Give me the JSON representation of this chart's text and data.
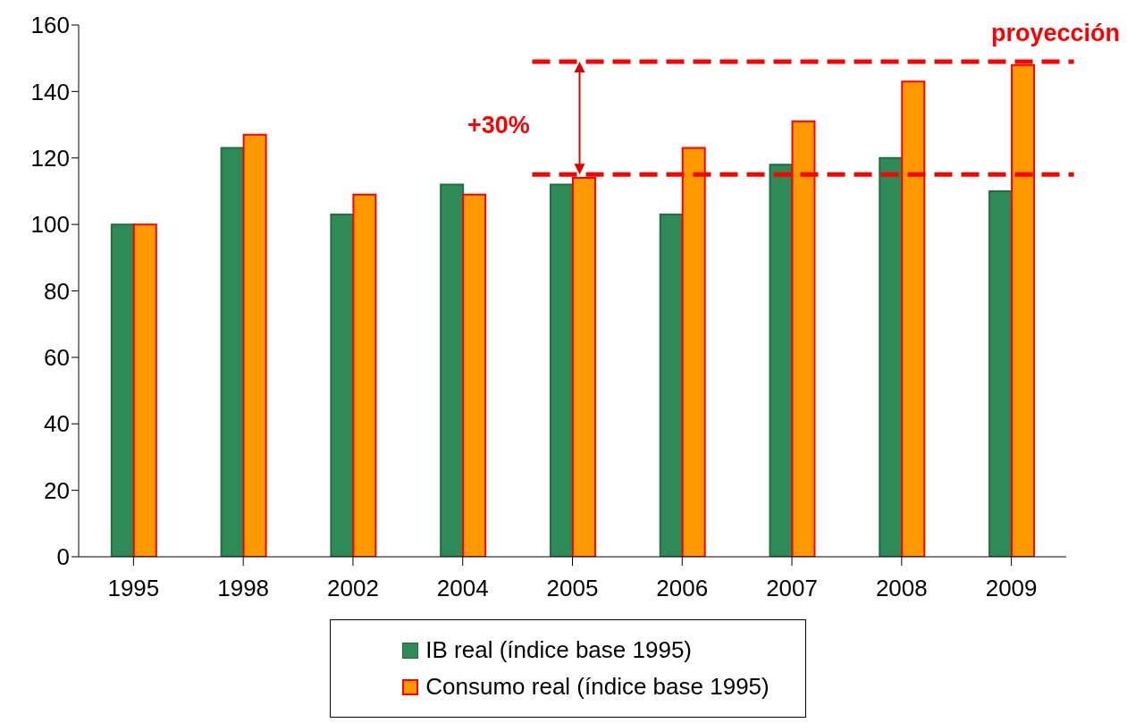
{
  "chart_data": {
    "type": "bar",
    "categories": [
      "1995",
      "1998",
      "2002",
      "2004",
      "2005",
      "2006",
      "2007",
      "2008",
      "2009"
    ],
    "series": [
      {
        "name": "IB real (índice base 1995)",
        "color": "#2e8b57",
        "values": [
          100,
          123,
          103,
          112,
          112,
          103,
          118,
          120,
          110
        ]
      },
      {
        "name": "Consumo real (índice base 1995)",
        "color": "#ff9900",
        "values": [
          100,
          127,
          109,
          109,
          114,
          123,
          131,
          143,
          148
        ]
      }
    ],
    "ylim": [
      0,
      160
    ],
    "yticks": [
      0,
      20,
      40,
      60,
      80,
      100,
      120,
      140,
      160
    ],
    "grid": false,
    "legend": "bottom",
    "ref_lines": [
      {
        "axis": "y",
        "value": 149,
        "color": "#ff0000",
        "line_style": "dashed"
      },
      {
        "axis": "y",
        "value": 115,
        "color": "#ff0000",
        "line_style": "dashed"
      }
    ],
    "annotations": [
      "+30%",
      "proyección"
    ]
  }
}
